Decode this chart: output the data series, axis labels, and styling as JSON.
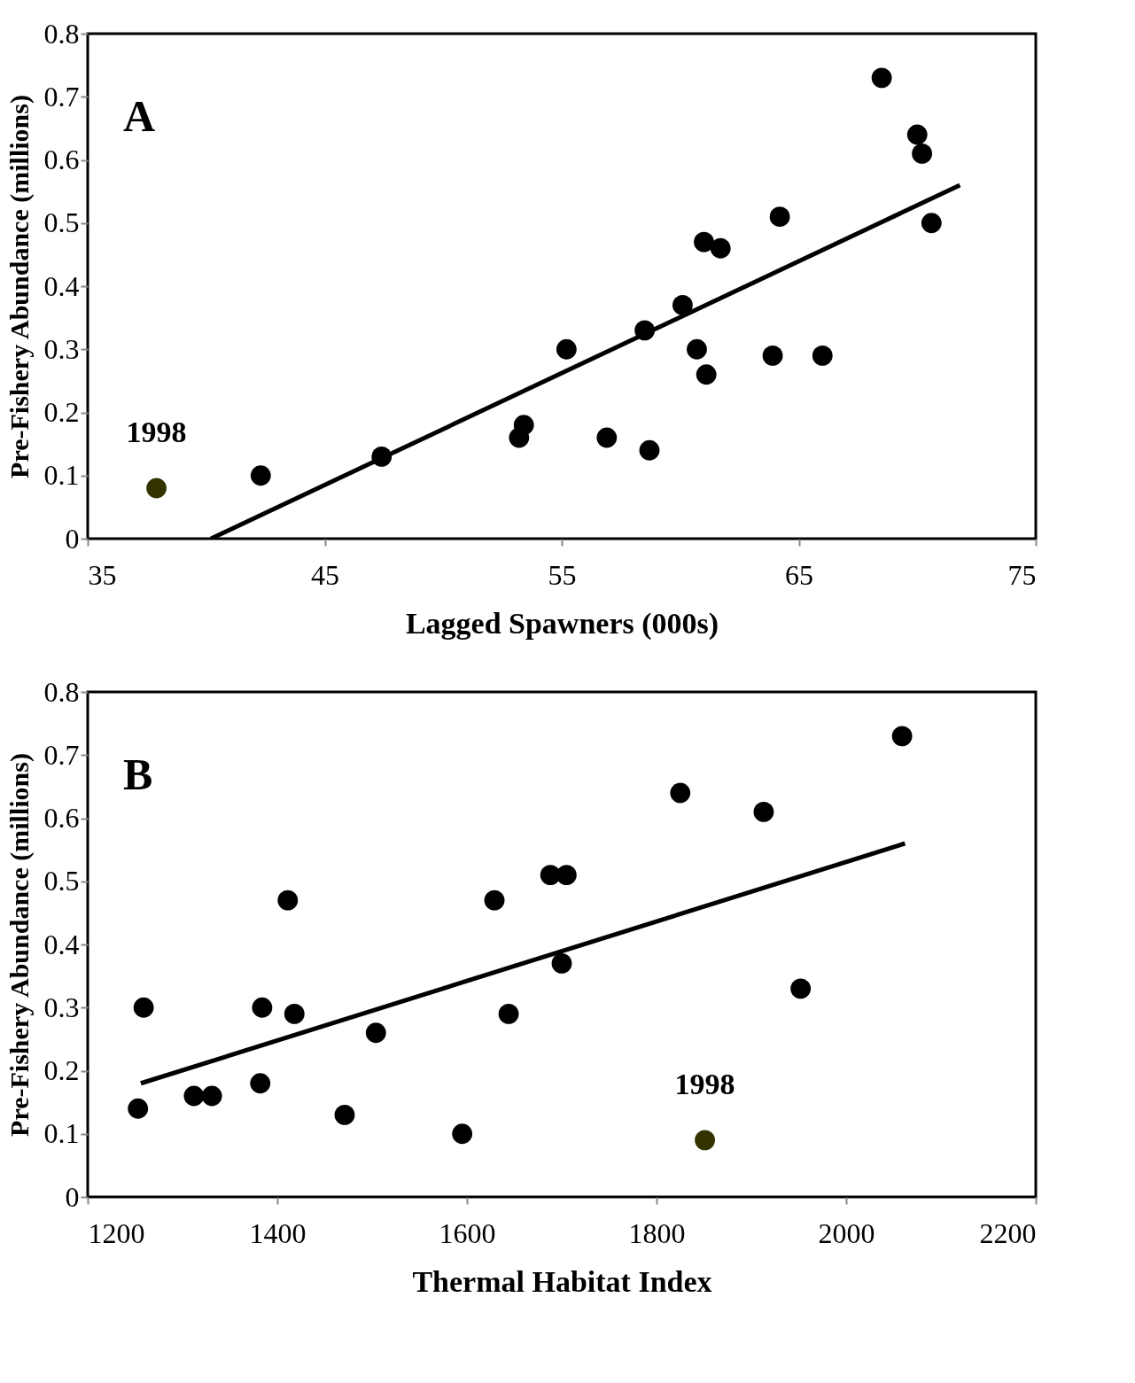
{
  "chart_data": [
    {
      "type": "scatter",
      "xlabel": "Lagged Spawners (000s)",
      "ylabel": "Pre-Fishery Abundance (millions)",
      "xlim": [
        35,
        75
      ],
      "xticks": [
        35,
        45,
        55,
        65,
        75
      ],
      "ylim": [
        0,
        0.8
      ],
      "yticks": [
        0,
        0.1,
        0.2,
        0.3,
        0.4,
        0.5,
        0.6,
        0.7,
        0.8
      ],
      "grid": false,
      "legend": false,
      "annotations": [
        "A",
        {
          "text": "1998",
          "x": 37.9,
          "y": 0.08
        }
      ],
      "series": [
        {
          "type": "scatter",
          "marker": "circle",
          "color": "#000000",
          "x": [
            42.3,
            47.4,
            53.2,
            53.4,
            55.2,
            56.9,
            58.5,
            58.7,
            60.1,
            60.7,
            61.0,
            61.1,
            61.7,
            63.9,
            64.2,
            66.0,
            68.5,
            70.0,
            70.2,
            70.6
          ],
          "values": [
            0.1,
            0.13,
            0.16,
            0.18,
            0.3,
            0.16,
            0.33,
            0.14,
            0.37,
            0.3,
            0.47,
            0.26,
            0.46,
            0.29,
            0.51,
            0.29,
            0.73,
            0.64,
            0.61,
            0.5
          ]
        },
        {
          "type": "scatter",
          "marker": "circle",
          "color": "#333300",
          "x": [
            37.9
          ],
          "values": [
            0.08
          ]
        },
        {
          "type": "line",
          "color": "#000000",
          "x": [
            40.2,
            71.8
          ],
          "values": [
            0,
            0.56
          ]
        }
      ]
    },
    {
      "type": "scatter",
      "xlabel": "Thermal Habitat Index",
      "ylabel": "Pre-Fishery Abundance (millions)",
      "xlim": [
        1200,
        2200
      ],
      "xticks": [
        1200,
        1400,
        1600,
        1800,
        2000,
        2200
      ],
      "ylim": [
        0,
        0.8
      ],
      "yticks": [
        0,
        0.1,
        0.2,
        0.3,
        0.4,
        0.5,
        0.6,
        0.7,
        0.8
      ],
      "grid": false,
      "legend": false,
      "annotations": [
        "B",
        {
          "text": "1998",
          "x": 1851,
          "y": 0.09
        }
      ],
      "series": [
        {
          "type": "scatter",
          "marker": "circle",
          "color": "#000000",
          "x": [
            1253,
            1259,
            1312,
            1331,
            1384,
            1382,
            1411,
            1418,
            1471,
            1504,
            1595,
            1629,
            1644,
            1688,
            1700,
            1705,
            1825,
            1913,
            1952,
            2059
          ],
          "values": [
            0.14,
            0.3,
            0.16,
            0.16,
            0.3,
            0.18,
            0.47,
            0.29,
            0.13,
            0.26,
            0.1,
            0.47,
            0.29,
            0.51,
            0.37,
            0.51,
            0.64,
            0.61,
            0.33,
            0.73
          ]
        },
        {
          "type": "scatter",
          "marker": "circle",
          "color": "#333300",
          "x": [
            1851
          ],
          "values": [
            0.09
          ]
        },
        {
          "type": "line",
          "color": "#000000",
          "x": [
            1256,
            2062
          ],
          "values": [
            0.18,
            0.56
          ]
        }
      ]
    }
  ]
}
